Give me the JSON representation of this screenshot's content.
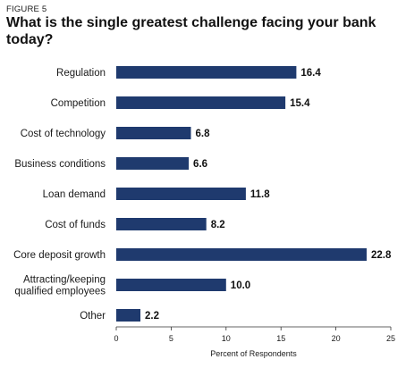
{
  "figure_label": "FIGURE 5",
  "chart_data": {
    "type": "bar",
    "orientation": "horizontal",
    "title": "What is the single greatest challenge facing your bank today?",
    "categories": [
      [
        "Regulation"
      ],
      [
        "Competition"
      ],
      [
        "Cost of technology"
      ],
      [
        "Business conditions"
      ],
      [
        "Loan demand"
      ],
      [
        "Cost of funds"
      ],
      [
        "Core deposit growth"
      ],
      [
        "Attracting/keeping",
        "qualified employees"
      ],
      [
        "Other"
      ]
    ],
    "values": [
      16.4,
      15.4,
      6.8,
      6.6,
      11.8,
      8.2,
      22.8,
      10.0,
      2.2
    ],
    "value_labels": [
      "16.4",
      "15.4",
      "6.8",
      "6.6",
      "11.8",
      "8.2",
      "22.8",
      "10.0",
      "2.2"
    ],
    "xlabel": "Percent of Respondents",
    "ylabel": "",
    "xlim": [
      0,
      25
    ],
    "xticks": [
      0,
      5,
      10,
      15,
      20,
      25
    ],
    "bar_color": "#1f3a6e",
    "grid": false,
    "legend": "none"
  }
}
